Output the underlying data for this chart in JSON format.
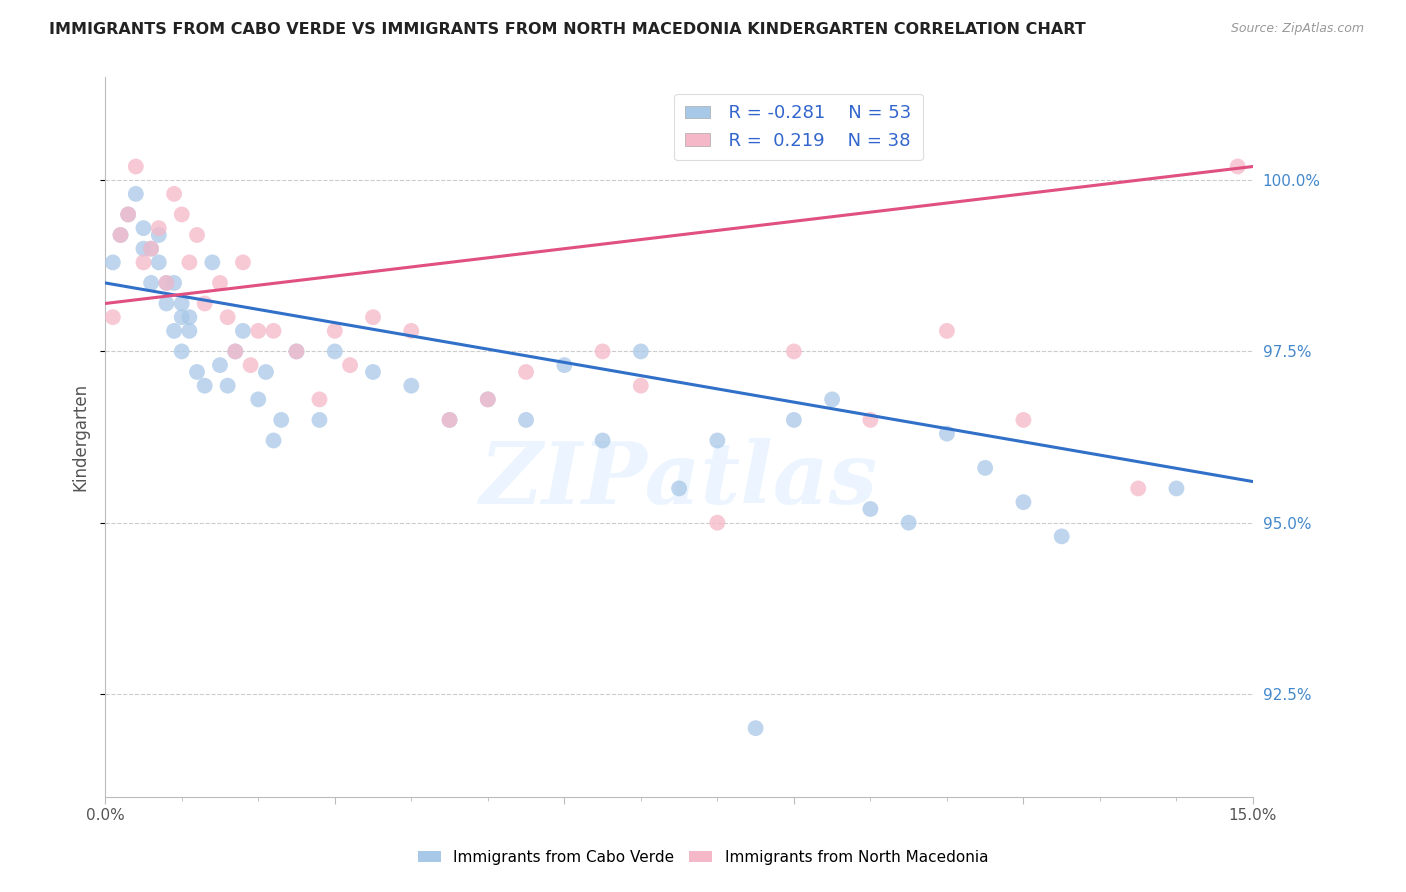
{
  "title": "IMMIGRANTS FROM CABO VERDE VS IMMIGRANTS FROM NORTH MACEDONIA KINDERGARTEN CORRELATION CHART",
  "source": "Source: ZipAtlas.com",
  "ylabel": "Kindergarten",
  "ylabel_right_vals": [
    100.0,
    97.5,
    95.0,
    92.5
  ],
  "xmin": 0.0,
  "xmax": 15.0,
  "ymin": 91.0,
  "ymax": 101.5,
  "legend_blue_r": "R = -0.281",
  "legend_blue_n": "N = 53",
  "legend_pink_r": "R =  0.219",
  "legend_pink_n": "N = 38",
  "legend_label_blue": "Immigrants from Cabo Verde",
  "legend_label_pink": "Immigrants from North Macedonia",
  "blue_color": "#a8c8e8",
  "pink_color": "#f5b8c8",
  "blue_line_color": "#3070c8",
  "pink_line_color": "#e05080",
  "cabo_verde_x": [
    0.1,
    0.2,
    0.3,
    0.4,
    0.5,
    0.5,
    0.6,
    0.6,
    0.7,
    0.7,
    0.8,
    0.8,
    0.9,
    0.9,
    1.0,
    1.0,
    1.0,
    1.1,
    1.1,
    1.2,
    1.3,
    1.4,
    1.5,
    1.6,
    1.7,
    1.8,
    2.0,
    2.1,
    2.2,
    2.3,
    2.5,
    2.8,
    3.0,
    3.5,
    4.0,
    4.5,
    5.0,
    5.5,
    6.0,
    6.5,
    7.0,
    7.5,
    8.0,
    8.5,
    9.0,
    9.5,
    10.0,
    10.5,
    11.0,
    11.5,
    12.0,
    12.5,
    14.0
  ],
  "cabo_verde_y": [
    98.8,
    99.2,
    99.5,
    99.8,
    99.0,
    99.3,
    98.5,
    99.0,
    98.8,
    99.2,
    98.2,
    98.5,
    97.8,
    98.5,
    97.5,
    98.0,
    98.2,
    97.8,
    98.0,
    97.2,
    97.0,
    98.8,
    97.3,
    97.0,
    97.5,
    97.8,
    96.8,
    97.2,
    96.2,
    96.5,
    97.5,
    96.5,
    97.5,
    97.2,
    97.0,
    96.5,
    96.8,
    96.5,
    97.3,
    96.2,
    97.5,
    95.5,
    96.2,
    92.0,
    96.5,
    96.8,
    95.2,
    95.0,
    96.3,
    95.8,
    95.3,
    94.8,
    95.5
  ],
  "north_mac_x": [
    0.1,
    0.2,
    0.3,
    0.4,
    0.5,
    0.6,
    0.7,
    0.8,
    0.9,
    1.0,
    1.1,
    1.2,
    1.3,
    1.5,
    1.6,
    1.7,
    1.8,
    1.9,
    2.0,
    2.2,
    2.5,
    2.8,
    3.0,
    3.2,
    3.5,
    4.0,
    4.5,
    5.0,
    5.5,
    6.5,
    7.0,
    8.0,
    9.0,
    10.0,
    11.0,
    12.0,
    13.5,
    14.8
  ],
  "north_mac_y": [
    98.0,
    99.2,
    99.5,
    100.2,
    98.8,
    99.0,
    99.3,
    98.5,
    99.8,
    99.5,
    98.8,
    99.2,
    98.2,
    98.5,
    98.0,
    97.5,
    98.8,
    97.3,
    97.8,
    97.8,
    97.5,
    96.8,
    97.8,
    97.3,
    98.0,
    97.8,
    96.5,
    96.8,
    97.2,
    97.5,
    97.0,
    95.0,
    97.5,
    96.5,
    97.8,
    96.5,
    95.5,
    100.2
  ],
  "watermark_text": "ZIPatlas",
  "blue_trend_x0": 0.0,
  "blue_trend_y0": 98.5,
  "blue_trend_x1": 15.0,
  "blue_trend_y1": 95.6,
  "pink_trend_x0": 0.0,
  "pink_trend_y0": 98.2,
  "pink_trend_x1": 15.0,
  "pink_trend_y1": 100.2
}
